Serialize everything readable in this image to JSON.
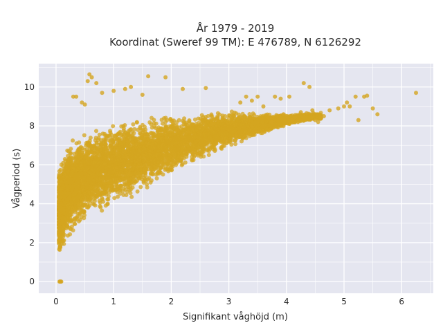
{
  "chart_data": {
    "type": "scatter",
    "title_line1": "År 1979 - 2019",
    "title_line2": "Koordinat (Sweref 99 TM): E 476789, N 6126292",
    "xlabel": "Signifikant våghöjd (m)",
    "ylabel": "Vågperiod (s)",
    "xlim": [
      -0.3,
      6.55
    ],
    "ylim": [
      -0.6,
      11.2
    ],
    "xticks": [
      0,
      1,
      2,
      3,
      4,
      5,
      6
    ],
    "yticks": [
      0,
      2,
      4,
      6,
      8,
      10
    ],
    "xtick_labels": [
      "0",
      "1",
      "2",
      "3",
      "4",
      "5",
      "6"
    ],
    "ytick_labels": [
      "0",
      "2",
      "4",
      "6",
      "8",
      "10"
    ],
    "grid": true,
    "colors": {
      "marker": "#D4A520",
      "plot_bg": "#E5E6F0",
      "grid": "#FFFFFF"
    },
    "series": [
      {
        "envelope_description_points": {
          "lower": [
            [
              0.1,
              1.2
            ],
            [
              0.2,
              2.0
            ],
            [
              0.4,
              2.7
            ],
            [
              0.7,
              3.3
            ],
            [
              1.0,
              3.8
            ],
            [
              1.5,
              4.5
            ],
            [
              2.0,
              5.3
            ],
            [
              2.5,
              6.1
            ],
            [
              3.0,
              6.8
            ],
            [
              3.5,
              7.4
            ],
            [
              4.0,
              8.0
            ],
            [
              4.5,
              8.3
            ]
          ],
          "upper": [
            [
              0.05,
              6.0
            ],
            [
              0.2,
              7.2
            ],
            [
              0.4,
              7.7
            ],
            [
              0.8,
              8.1
            ],
            [
              1.2,
              8.4
            ],
            [
              1.8,
              8.7
            ],
            [
              2.5,
              8.8
            ],
            [
              3.0,
              8.8
            ],
            [
              3.5,
              8.7
            ],
            [
              4.0,
              8.6
            ],
            [
              4.5,
              8.7
            ]
          ]
        },
        "points": [
          [
            0.07,
            0.0
          ],
          [
            0.08,
            0.0
          ],
          [
            0.09,
            0.0
          ],
          [
            0.06,
            0.0
          ],
          [
            0.58,
            10.65
          ],
          [
            0.62,
            10.5
          ],
          [
            0.55,
            10.3
          ],
          [
            0.7,
            10.2
          ],
          [
            0.3,
            9.5
          ],
          [
            0.35,
            9.5
          ],
          [
            0.45,
            9.2
          ],
          [
            0.5,
            9.1
          ],
          [
            0.8,
            9.7
          ],
          [
            1.0,
            9.8
          ],
          [
            1.2,
            9.9
          ],
          [
            1.6,
            10.55
          ],
          [
            1.9,
            10.5
          ],
          [
            1.5,
            9.6
          ],
          [
            2.2,
            9.9
          ],
          [
            1.3,
            10.0
          ],
          [
            2.6,
            9.95
          ],
          [
            3.3,
            9.5
          ],
          [
            3.5,
            9.5
          ],
          [
            3.4,
            9.3
          ],
          [
            3.2,
            9.2
          ],
          [
            3.6,
            9.0
          ],
          [
            3.8,
            9.5
          ],
          [
            3.9,
            9.4
          ],
          [
            4.05,
            9.5
          ],
          [
            4.3,
            10.2
          ],
          [
            4.4,
            10.0
          ],
          [
            4.45,
            8.8
          ],
          [
            4.55,
            8.2
          ],
          [
            4.65,
            8.5
          ],
          [
            4.6,
            8.4
          ],
          [
            4.75,
            8.8
          ],
          [
            4.9,
            8.9
          ],
          [
            5.0,
            9.0
          ],
          [
            5.05,
            9.2
          ],
          [
            5.1,
            9.0
          ],
          [
            5.2,
            9.5
          ],
          [
            5.25,
            8.3
          ],
          [
            5.35,
            9.5
          ],
          [
            5.4,
            9.55
          ],
          [
            5.5,
            8.9
          ],
          [
            5.58,
            8.6
          ],
          [
            6.25,
            9.7
          ],
          [
            4.5,
            8.3
          ],
          [
            3.95,
            8.6
          ],
          [
            4.15,
            8.45
          ],
          [
            4.25,
            8.7
          ],
          [
            4.35,
            8.65
          ],
          [
            3.7,
            8.4
          ],
          [
            3.75,
            8.2
          ],
          [
            4.1,
            8.3
          ],
          [
            4.2,
            8.2
          ]
        ]
      }
    ]
  }
}
